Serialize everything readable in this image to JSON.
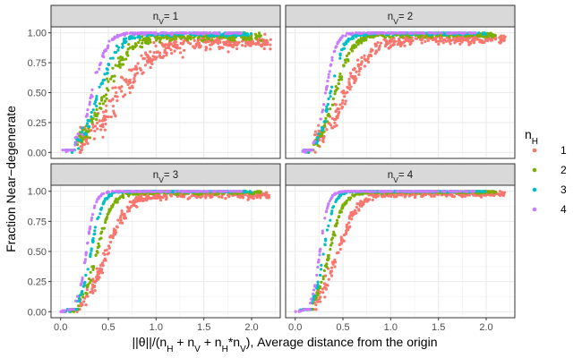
{
  "chart_data": {
    "type": "scatter",
    "title": "",
    "xlabel": "||θ||/(n_H + n_V + n_H*n_V), Average distance from the origin",
    "xlabel_parts": {
      "t1": "||θ||/(n",
      "s1": "H",
      "t2": " + n",
      "s2": "V",
      "t3": " + n",
      "s3": "H",
      "t4": "*n",
      "s4": "V",
      "t5": "), Average distance from the origin"
    },
    "ylabel": "Fraction Near−degenerate",
    "xlim": [
      -0.1,
      2.3
    ],
    "ylim": [
      -0.05,
      1.05
    ],
    "x_ticks": [
      0.0,
      0.5,
      1.0,
      1.5,
      2.0
    ],
    "x_tick_labels": [
      "0.0",
      "0.5",
      "1.0",
      "1.5",
      "2.0"
    ],
    "y_ticks": [
      0.0,
      0.25,
      0.5,
      0.75,
      1.0
    ],
    "y_tick_labels": [
      "0.00",
      "0.25",
      "0.50",
      "0.75",
      "1.00"
    ],
    "grid": true,
    "legend": {
      "title": "n_H",
      "title_main": "n",
      "title_sub": "H",
      "position": "right",
      "entries": [
        {
          "label": "1",
          "color": "#F8766D"
        },
        {
          "label": "2",
          "color": "#7CAE00"
        },
        {
          "label": "3",
          "color": "#00BFC4"
        },
        {
          "label": "4",
          "color": "#C77CFF"
        }
      ]
    },
    "panels": [
      {
        "strip": {
          "main": "n",
          "sub": "V",
          "suffix": "= 1"
        },
        "series": [
          {
            "name": "1",
            "x_start": 0.2,
            "x_end": 2.2,
            "x_mid": 0.6,
            "steepness": 5.5,
            "min": 0.0,
            "max": 0.92,
            "spread": 0.07,
            "n": 380
          },
          {
            "name": "2",
            "x_start": 0.1,
            "x_end": 2.1,
            "x_mid": 0.46,
            "steepness": 8.0,
            "min": 0.0,
            "max": 0.97,
            "spread": 0.045,
            "n": 300
          },
          {
            "name": "3",
            "x_start": 0.05,
            "x_end": 2.0,
            "x_mid": 0.4,
            "steepness": 10.0,
            "min": 0.0,
            "max": 0.99,
            "spread": 0.03,
            "n": 230
          },
          {
            "name": "4",
            "x_start": 0.0,
            "x_end": 1.9,
            "x_mid": 0.33,
            "steepness": 13.0,
            "min": 0.0,
            "max": 1.0,
            "spread": 0.02,
            "n": 200
          }
        ]
      },
      {
        "strip": {
          "main": "n",
          "sub": "V",
          "suffix": "= 2"
        },
        "series": [
          {
            "name": "1",
            "x_start": 0.2,
            "x_end": 2.2,
            "x_mid": 0.52,
            "steepness": 7.0,
            "min": 0.0,
            "max": 0.95,
            "spread": 0.05,
            "n": 360
          },
          {
            "name": "2",
            "x_start": 0.12,
            "x_end": 2.1,
            "x_mid": 0.42,
            "steepness": 11.0,
            "min": 0.0,
            "max": 0.985,
            "spread": 0.03,
            "n": 290
          },
          {
            "name": "3",
            "x_start": 0.08,
            "x_end": 2.0,
            "x_mid": 0.37,
            "steepness": 15.0,
            "min": 0.0,
            "max": 0.995,
            "spread": 0.02,
            "n": 230
          },
          {
            "name": "4",
            "x_start": 0.05,
            "x_end": 1.9,
            "x_mid": 0.32,
            "steepness": 19.0,
            "min": 0.0,
            "max": 1.0,
            "spread": 0.012,
            "n": 200
          }
        ]
      },
      {
        "strip": {
          "main": "n",
          "sub": "V",
          "suffix": "= 3"
        },
        "series": [
          {
            "name": "1",
            "x_start": 0.15,
            "x_end": 2.2,
            "x_mid": 0.48,
            "steepness": 9.0,
            "min": 0.0,
            "max": 0.97,
            "spread": 0.04,
            "n": 360
          },
          {
            "name": "2",
            "x_start": 0.1,
            "x_end": 2.1,
            "x_mid": 0.38,
            "steepness": 13.0,
            "min": 0.0,
            "max": 0.99,
            "spread": 0.025,
            "n": 280
          },
          {
            "name": "3",
            "x_start": 0.05,
            "x_end": 2.0,
            "x_mid": 0.32,
            "steepness": 17.0,
            "min": 0.0,
            "max": 1.0,
            "spread": 0.015,
            "n": 230
          },
          {
            "name": "4",
            "x_start": 0.0,
            "x_end": 1.9,
            "x_mid": 0.27,
            "steepness": 22.0,
            "min": 0.0,
            "max": 1.0,
            "spread": 0.01,
            "n": 200
          }
        ]
      },
      {
        "strip": {
          "main": "n",
          "sub": "V",
          "suffix": "= 4"
        },
        "series": [
          {
            "name": "1",
            "x_start": 0.15,
            "x_end": 2.2,
            "x_mid": 0.45,
            "steepness": 10.0,
            "min": 0.0,
            "max": 0.98,
            "spread": 0.035,
            "n": 360
          },
          {
            "name": "2",
            "x_start": 0.1,
            "x_end": 2.1,
            "x_mid": 0.36,
            "steepness": 14.0,
            "min": 0.0,
            "max": 0.995,
            "spread": 0.02,
            "n": 280
          },
          {
            "name": "3",
            "x_start": 0.05,
            "x_end": 2.0,
            "x_mid": 0.3,
            "steepness": 19.0,
            "min": 0.0,
            "max": 1.0,
            "spread": 0.012,
            "n": 230
          },
          {
            "name": "4",
            "x_start": 0.0,
            "x_end": 1.9,
            "x_mid": 0.26,
            "steepness": 24.0,
            "min": 0.0,
            "max": 1.0,
            "spread": 0.008,
            "n": 200
          }
        ]
      }
    ]
  }
}
